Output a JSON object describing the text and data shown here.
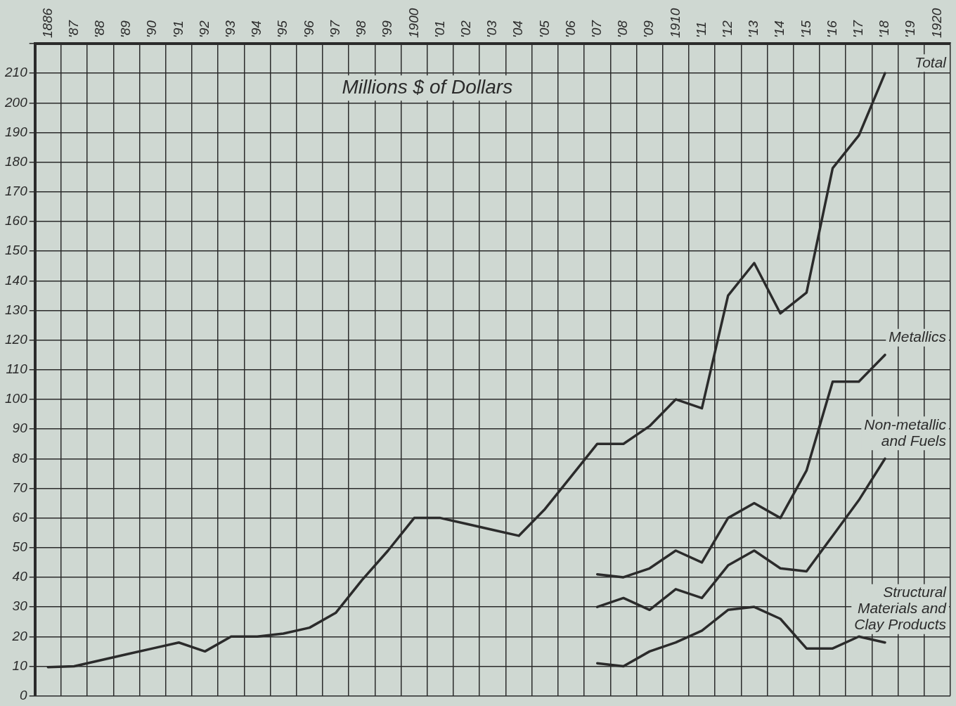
{
  "chart_data": {
    "type": "line",
    "ylabel": "Millions $ of Dollars",
    "categories": [
      "1886",
      "'87",
      "'88",
      "'89",
      "'90",
      "'91",
      "'92",
      "'93",
      "'94",
      "'95",
      "'96",
      "'97",
      "'98",
      "'99",
      "1900",
      "'01",
      "'02",
      "'03",
      "'04",
      "'05",
      "'06",
      "'07",
      "'08",
      "'09",
      "1910",
      "'11",
      "'12",
      "'13",
      "'14",
      "'15",
      "'16",
      "'17",
      "'18",
      "'19",
      "1920"
    ],
    "series": [
      {
        "name": "Total",
        "color": "#2b2b2b",
        "values": [
          9.7,
          10,
          12,
          14,
          16,
          18,
          15,
          20,
          20,
          21,
          23,
          28,
          39,
          49,
          60,
          60,
          58,
          56,
          54,
          63,
          74,
          85,
          85,
          91,
          100,
          97,
          135,
          146,
          129,
          136,
          178,
          189,
          210,
          null,
          null
        ]
      },
      {
        "name": "Metallics",
        "color": "#2b2b2b",
        "values": [
          null,
          null,
          null,
          null,
          null,
          null,
          null,
          null,
          null,
          null,
          null,
          null,
          null,
          null,
          null,
          null,
          null,
          null,
          null,
          null,
          null,
          41,
          40,
          43,
          49,
          45,
          60,
          65,
          60,
          76,
          106,
          106,
          115,
          null,
          null
        ]
      },
      {
        "name": "Non-metallic and Fuels",
        "color": "#2b2b2b",
        "values": [
          null,
          null,
          null,
          null,
          null,
          null,
          null,
          null,
          null,
          null,
          null,
          null,
          null,
          null,
          null,
          null,
          null,
          null,
          null,
          null,
          null,
          30,
          33,
          29,
          36,
          33,
          44,
          49,
          43,
          42,
          54,
          66,
          80,
          null,
          null
        ]
      },
      {
        "name": "Structural Materials and Clay Products",
        "color": "#2b2b2b",
        "values": [
          null,
          null,
          null,
          null,
          null,
          null,
          null,
          null,
          null,
          null,
          null,
          null,
          null,
          null,
          null,
          null,
          null,
          null,
          null,
          null,
          null,
          11,
          10,
          15,
          18,
          22,
          29,
          30,
          26,
          16,
          16,
          20,
          18,
          null,
          null
        ]
      }
    ],
    "ylim": [
      0,
      220
    ],
    "yticks": [
      0,
      10,
      20,
      30,
      40,
      50,
      60,
      70,
      80,
      90,
      100,
      110,
      120,
      130,
      140,
      150,
      160,
      170,
      180,
      190,
      200,
      210,
      {
        "value": 220,
        "label": null
      }
    ],
    "grid": true,
    "legend": false,
    "marker": "none",
    "line_style": "solid"
  }
}
